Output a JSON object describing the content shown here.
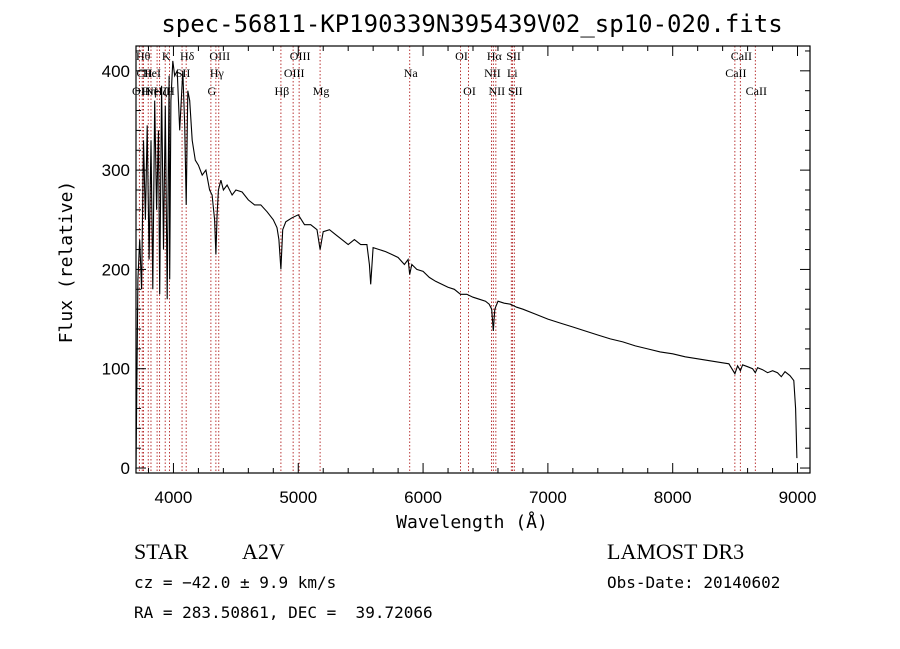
{
  "chart_data": {
    "type": "line",
    "title": "spec-56811-KP190339N395439V02_sp10-020.fits",
    "xlabel": "Wavelength (Å)",
    "ylabel": "Flux (relative)",
    "xlim": [
      3700,
      9100
    ],
    "ylim": [
      -5,
      425
    ],
    "xticks": [
      4000,
      5000,
      6000,
      7000,
      8000,
      9000
    ],
    "yticks": [
      0,
      100,
      200,
      300,
      400
    ],
    "series": [
      {
        "name": "flux",
        "x": [
          3700,
          3715,
          3730,
          3745,
          3760,
          3775,
          3790,
          3805,
          3820,
          3835,
          3850,
          3865,
          3880,
          3890,
          3905,
          3920,
          3935,
          3950,
          3965,
          3970,
          3980,
          3995,
          4010,
          4030,
          4050,
          4075,
          4090,
          4102,
          4115,
          4130,
          4150,
          4175,
          4200,
          4230,
          4260,
          4290,
          4310,
          4330,
          4340,
          4350,
          4360,
          4380,
          4400,
          4430,
          4470,
          4500,
          4550,
          4600,
          4650,
          4700,
          4750,
          4800,
          4830,
          4845,
          4861,
          4875,
          4900,
          4950,
          5000,
          5050,
          5100,
          5150,
          5175,
          5200,
          5250,
          5300,
          5350,
          5400,
          5450,
          5500,
          5550,
          5570,
          5580,
          5600,
          5650,
          5700,
          5750,
          5800,
          5850,
          5880,
          5893,
          5910,
          5950,
          6000,
          6050,
          6100,
          6150,
          6200,
          6250,
          6300,
          6350,
          6400,
          6450,
          6500,
          6530,
          6550,
          6563,
          6575,
          6600,
          6650,
          6700,
          6750,
          6800,
          6900,
          7000,
          7100,
          7200,
          7300,
          7400,
          7500,
          7600,
          7700,
          7800,
          7900,
          8000,
          8100,
          8200,
          8300,
          8400,
          8450,
          8498,
          8520,
          8542,
          8560,
          8600,
          8640,
          8662,
          8680,
          8720,
          8760,
          8800,
          8840,
          8870,
          8900,
          8940,
          8970,
          8985,
          8995
        ],
        "values": [
          -2,
          190,
          230,
          180,
          330,
          250,
          345,
          210,
          330,
          180,
          370,
          260,
          340,
          175,
          385,
          220,
          365,
          170,
          395,
          190,
          370,
          410,
          395,
          400,
          340,
          400,
          345,
          265,
          380,
          370,
          330,
          310,
          305,
          295,
          300,
          280,
          275,
          250,
          215,
          255,
          280,
          290,
          280,
          285,
          275,
          280,
          278,
          270,
          265,
          265,
          258,
          250,
          242,
          230,
          200,
          240,
          248,
          252,
          255,
          245,
          245,
          240,
          220,
          238,
          240,
          235,
          230,
          225,
          230,
          225,
          225,
          205,
          185,
          222,
          220,
          218,
          215,
          212,
          205,
          210,
          195,
          205,
          200,
          198,
          192,
          188,
          185,
          182,
          180,
          175,
          175,
          172,
          170,
          168,
          165,
          160,
          138,
          160,
          168,
          166,
          165,
          162,
          160,
          155,
          150,
          146,
          142,
          138,
          134,
          130,
          127,
          123,
          120,
          117,
          115,
          112,
          110,
          108,
          106,
          105,
          95,
          103,
          98,
          104,
          102,
          100,
          96,
          101,
          99,
          96,
          98,
          96,
          92,
          97,
          93,
          88,
          60,
          10
        ]
      }
    ],
    "lines": [
      {
        "wl": 3727,
        "name": "OII",
        "row": 3
      },
      {
        "wl": 3750,
        "name": "Hθ",
        "row": 1
      },
      {
        "wl": 3760,
        "name": "CII",
        "row": 2
      },
      {
        "wl": 3798,
        "name": "Hη",
        "row": 3
      },
      {
        "wl": 3820,
        "name": "HeI",
        "row": 2
      },
      {
        "wl": 3869,
        "name": "NeIII",
        "row": 3
      },
      {
        "wl": 3889,
        "name": "Hζ",
        "row": 3
      },
      {
        "wl": 3934,
        "name": "K",
        "row": 1
      },
      {
        "wl": 3968,
        "name": "H",
        "row": 3
      },
      {
        "wl": 4069,
        "name": "SII",
        "row": 2
      },
      {
        "wl": 4102,
        "name": "Hδ",
        "row": 1
      },
      {
        "wl": 4300,
        "name": "G",
        "row": 3
      },
      {
        "wl": 4340,
        "name": "Hγ",
        "row": 2
      },
      {
        "wl": 4363,
        "name": "OIII",
        "row": 1
      },
      {
        "wl": 4861,
        "name": "Hβ",
        "row": 3
      },
      {
        "wl": 4959,
        "name": "OIII",
        "row": 2
      },
      {
        "wl": 5007,
        "name": "OIII",
        "row": 1
      },
      {
        "wl": 5175,
        "name": "Mg",
        "row": 3
      },
      {
        "wl": 5893,
        "name": "Na",
        "row": 2
      },
      {
        "wl": 6300,
        "name": "OI",
        "row": 1
      },
      {
        "wl": 6364,
        "name": "OI",
        "row": 3
      },
      {
        "wl": 6548,
        "name": "NII",
        "row": 2
      },
      {
        "wl": 6563,
        "name": "Hα",
        "row": 1
      },
      {
        "wl": 6583,
        "name": "NII",
        "row": 3
      },
      {
        "wl": 6707,
        "name": "Li",
        "row": 2
      },
      {
        "wl": 6717,
        "name": "SII",
        "row": 1
      },
      {
        "wl": 6731,
        "name": "SII",
        "row": 3
      },
      {
        "wl": 8498,
        "name": "CaII",
        "row": 2
      },
      {
        "wl": 8542,
        "name": "CaII",
        "row": 1
      },
      {
        "wl": 8662,
        "name": "CaII",
        "row": 3
      }
    ]
  },
  "info": {
    "class_label": "STAR",
    "subclass": "A2V",
    "survey": "LAMOST DR3",
    "cz": "cz = −42.0 ± 9.9 km/s",
    "obs_date": "Obs-Date: 20140602",
    "coords": "RA = 283.50861, DEC =  39.72066"
  }
}
